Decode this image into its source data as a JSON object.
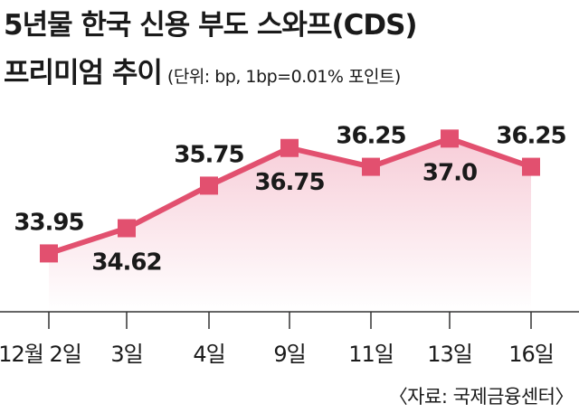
{
  "title": "5년물 한국 신용 부도 스와프(CDS)",
  "subtitle": "프리미엄 추이",
  "unit_note": "(단위: bp, 1bp=0.01% 포인트)",
  "source": "〈자료: 국제금융센터〉",
  "colors": {
    "line": "#e2506f",
    "marker": "#e2506f",
    "area_top": "#f7cdd8",
    "area_bottom": "#ffffff",
    "text": "#1a1a1a"
  },
  "chart_data": {
    "type": "line",
    "categories": [
      "12월 2일",
      "3일",
      "4일",
      "9일",
      "11일",
      "13일",
      "16일"
    ],
    "values": [
      33.95,
      34.62,
      35.75,
      36.75,
      36.25,
      37.0,
      36.25
    ],
    "labels": [
      "33.95",
      "34.62",
      "35.75",
      "36.75",
      "36.25",
      "37.0",
      "36.25"
    ],
    "label_positions": [
      "above",
      "below",
      "above",
      "below",
      "above",
      "below",
      "above"
    ],
    "ylim": [
      32.4,
      37.8
    ],
    "xlabel": "",
    "ylabel": "",
    "grid": false
  }
}
